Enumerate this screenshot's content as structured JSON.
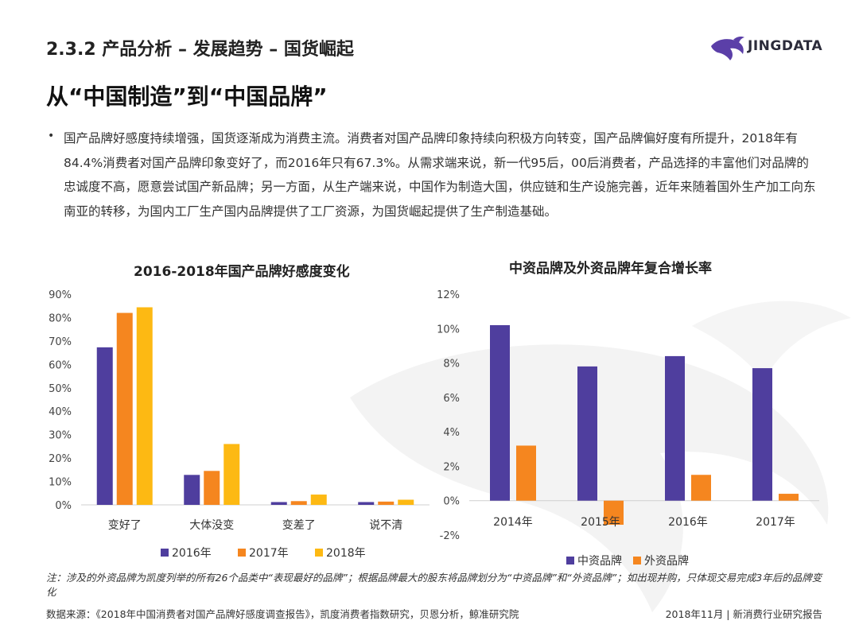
{
  "header": {
    "section_title": "2.3.2 产品分析 – 发展趋势 – 国货崛起",
    "logo_text": "JINGDATA",
    "page_heading": "从“中国制造”到“中国品牌”"
  },
  "body": {
    "bullet": "•",
    "paragraph": "国产品牌好感度持续增强，国货逐渐成为消费主流。消费者对国产品牌印象持续向积极方向转变，国产品牌偏好度有所提升，2018年有84.4%消费者对国产品牌印象变好了，而2016年只有67.3%。从需求端来说，新一代95后，00后消费者，产品选择的丰富他们对品牌的忠诚度不高，愿意尝试国产新品牌；另一方面，从生产端来说，中国作为制造大国，供应链和生产设施完善，近年来随着国外生产加工向东南亚的转移，为国内工厂生产国内品牌提供了工厂资源，为国货崛起提供了生产制造基础。"
  },
  "chart_data": [
    {
      "type": "bar",
      "title": "2016-2018年国产品牌好感度变化",
      "categories": [
        "变好了",
        "大体没变",
        "变差了",
        "说不清"
      ],
      "series": [
        {
          "name": "2016年",
          "color": "#4f3e9e",
          "values": [
            67.3,
            12.8,
            1.2,
            1.2
          ]
        },
        {
          "name": "2017年",
          "color": "#f5861f",
          "values": [
            82.0,
            14.5,
            1.6,
            1.4
          ]
        },
        {
          "name": "2018年",
          "color": "#fdb913",
          "values": [
            84.4,
            26.0,
            4.4,
            2.2
          ]
        }
      ],
      "ylim": [
        0,
        90
      ],
      "yticks": [
        "0%",
        "10%",
        "20%",
        "30%",
        "40%",
        "50%",
        "60%",
        "70%",
        "80%",
        "90%"
      ],
      "xlabel": "",
      "ylabel": "",
      "legend": "bottom"
    },
    {
      "type": "bar",
      "title": "中资品牌及外资品牌年复合增长率",
      "categories": [
        "2014年",
        "2015年",
        "2016年",
        "2017年"
      ],
      "series": [
        {
          "name": "中资品牌",
          "color": "#4f3e9e",
          "values": [
            10.2,
            7.8,
            8.4,
            7.7
          ]
        },
        {
          "name": "外资品牌",
          "color": "#f5861f",
          "values": [
            3.2,
            -1.4,
            1.5,
            0.4
          ]
        }
      ],
      "ylim": [
        -2,
        12
      ],
      "yticks": [
        "-2%",
        "0%",
        "2%",
        "4%",
        "6%",
        "8%",
        "10%",
        "12%"
      ],
      "xlabel": "",
      "ylabel": "",
      "legend": "bottom"
    }
  ],
  "footer": {
    "note": "注：涉及的外资品牌为凯度列举的所有26个品类中“表现最好的品牌”；根据品牌最大的股东将品牌划分为“中资品牌”和“外资品牌”；如出现并购，只体现交易完成3年后的品牌变化",
    "source": "数据来源：《2018年中国消费者对国产品牌好感度调查报告》，凯度消费者指数研究，贝恩分析，鲸准研究院",
    "date_report": "2018年11月 | 新消费行业研究报告"
  }
}
